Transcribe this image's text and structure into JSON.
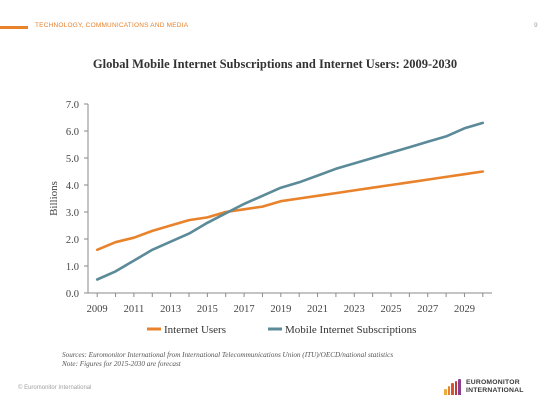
{
  "header": {
    "section": "TECHNOLOGY, COMMUNICATIONS AND MEDIA",
    "page_number": "9"
  },
  "chart_data": {
    "type": "line",
    "title": "Global Mobile Internet Subscriptions and Internet Users: 2009-2030",
    "ylabel": "Billions",
    "xlabel": "",
    "ylim": [
      0,
      7
    ],
    "yticks": [
      "0.0",
      "1.0",
      "2.0",
      "3.0",
      "4.0",
      "5.0",
      "6.0",
      "7.0"
    ],
    "xticks": [
      "2009",
      "2011",
      "2013",
      "2015",
      "2017",
      "2019",
      "2021",
      "2023",
      "2025",
      "2027",
      "2029"
    ],
    "x": [
      2009,
      2010,
      2011,
      2012,
      2013,
      2014,
      2015,
      2016,
      2017,
      2018,
      2019,
      2020,
      2021,
      2022,
      2023,
      2024,
      2025,
      2026,
      2027,
      2028,
      2029,
      2030
    ],
    "grid": false,
    "legend_position": "bottom",
    "series": [
      {
        "name": "Internet Users",
        "color": "#e8822b",
        "values": [
          1.6,
          1.88,
          2.05,
          2.3,
          2.5,
          2.7,
          2.8,
          3.0,
          3.1,
          3.2,
          3.4,
          3.5,
          3.6,
          3.7,
          3.8,
          3.9,
          4.0,
          4.1,
          4.2,
          4.3,
          4.4,
          4.5
        ]
      },
      {
        "name": "Mobile Internet Subscriptions",
        "color": "#5b8a99",
        "values": [
          0.5,
          0.8,
          1.2,
          1.6,
          1.9,
          2.2,
          2.6,
          2.95,
          3.3,
          3.6,
          3.9,
          4.1,
          4.35,
          4.6,
          4.8,
          5.0,
          5.2,
          5.4,
          5.6,
          5.8,
          6.1,
          6.3
        ]
      }
    ]
  },
  "notes": {
    "line1": "Sources: Euromonitor International from International Telecommunications Union (ITU)/OECD/national statistics",
    "line2": "Note: Figures for 2015-2030 are forecast"
  },
  "footer": {
    "copyright": "© Euromonitor International",
    "logo_line1": "EUROMONITOR",
    "logo_line2": "INTERNATIONAL"
  }
}
